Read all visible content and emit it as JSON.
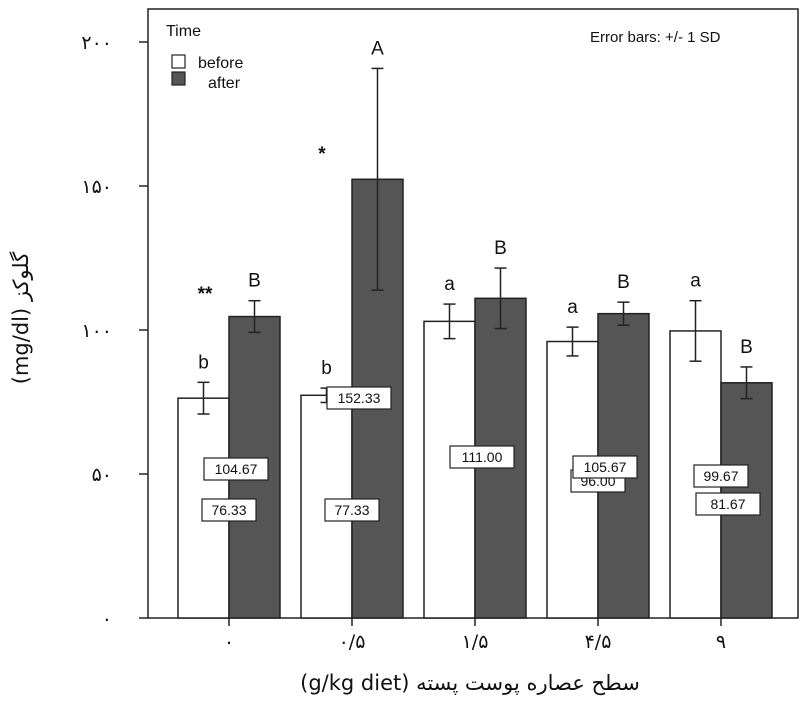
{
  "chart_data": {
    "type": "bar",
    "categories": [
      "۰",
      "۰/۵",
      "۱/۵",
      "۴/۵",
      "۹"
    ],
    "series": [
      {
        "name": "before",
        "values": [
          76.33,
          77.33,
          103,
          96.0,
          99.67
        ],
        "sd": [
          5.5,
          2.5,
          6,
          5,
          10.5
        ],
        "labels": [
          "76.33",
          "77.33",
          "",
          "96.00",
          "99.67"
        ],
        "letters": [
          "b",
          "b",
          "a",
          "a",
          "a"
        ],
        "color": "#ffffff"
      },
      {
        "name": "after",
        "values": [
          104.67,
          152.33,
          111.0,
          105.67,
          81.67
        ],
        "sd": [
          5.5,
          38.5,
          10.5,
          4,
          5.5
        ],
        "labels": [
          "104.67",
          "152.33",
          "111.00",
          "105.67",
          "81.67"
        ],
        "letters": [
          "B",
          "A",
          "B",
          "B",
          "B"
        ],
        "color": "#555555"
      }
    ],
    "significance": [
      "**",
      "*",
      "",
      "",
      ""
    ],
    "ylim": [
      0,
      200
    ],
    "yticks": [
      {
        "value": 0,
        "label": "۰"
      },
      {
        "value": 50,
        "label": "۵۰"
      },
      {
        "value": 100,
        "label": "۱۰۰"
      },
      {
        "value": 150,
        "label": "۱۵۰"
      },
      {
        "value": 200,
        "label": "۲۰۰"
      }
    ],
    "ylabel": "گلوکز (mg/dl)",
    "xlabel": "سطح عصاره پوست پسته (g/kg diet)",
    "legend": {
      "title": "Time",
      "position": "top-left"
    },
    "note": "Error bars: +/- 1 SD",
    "grid": false
  }
}
